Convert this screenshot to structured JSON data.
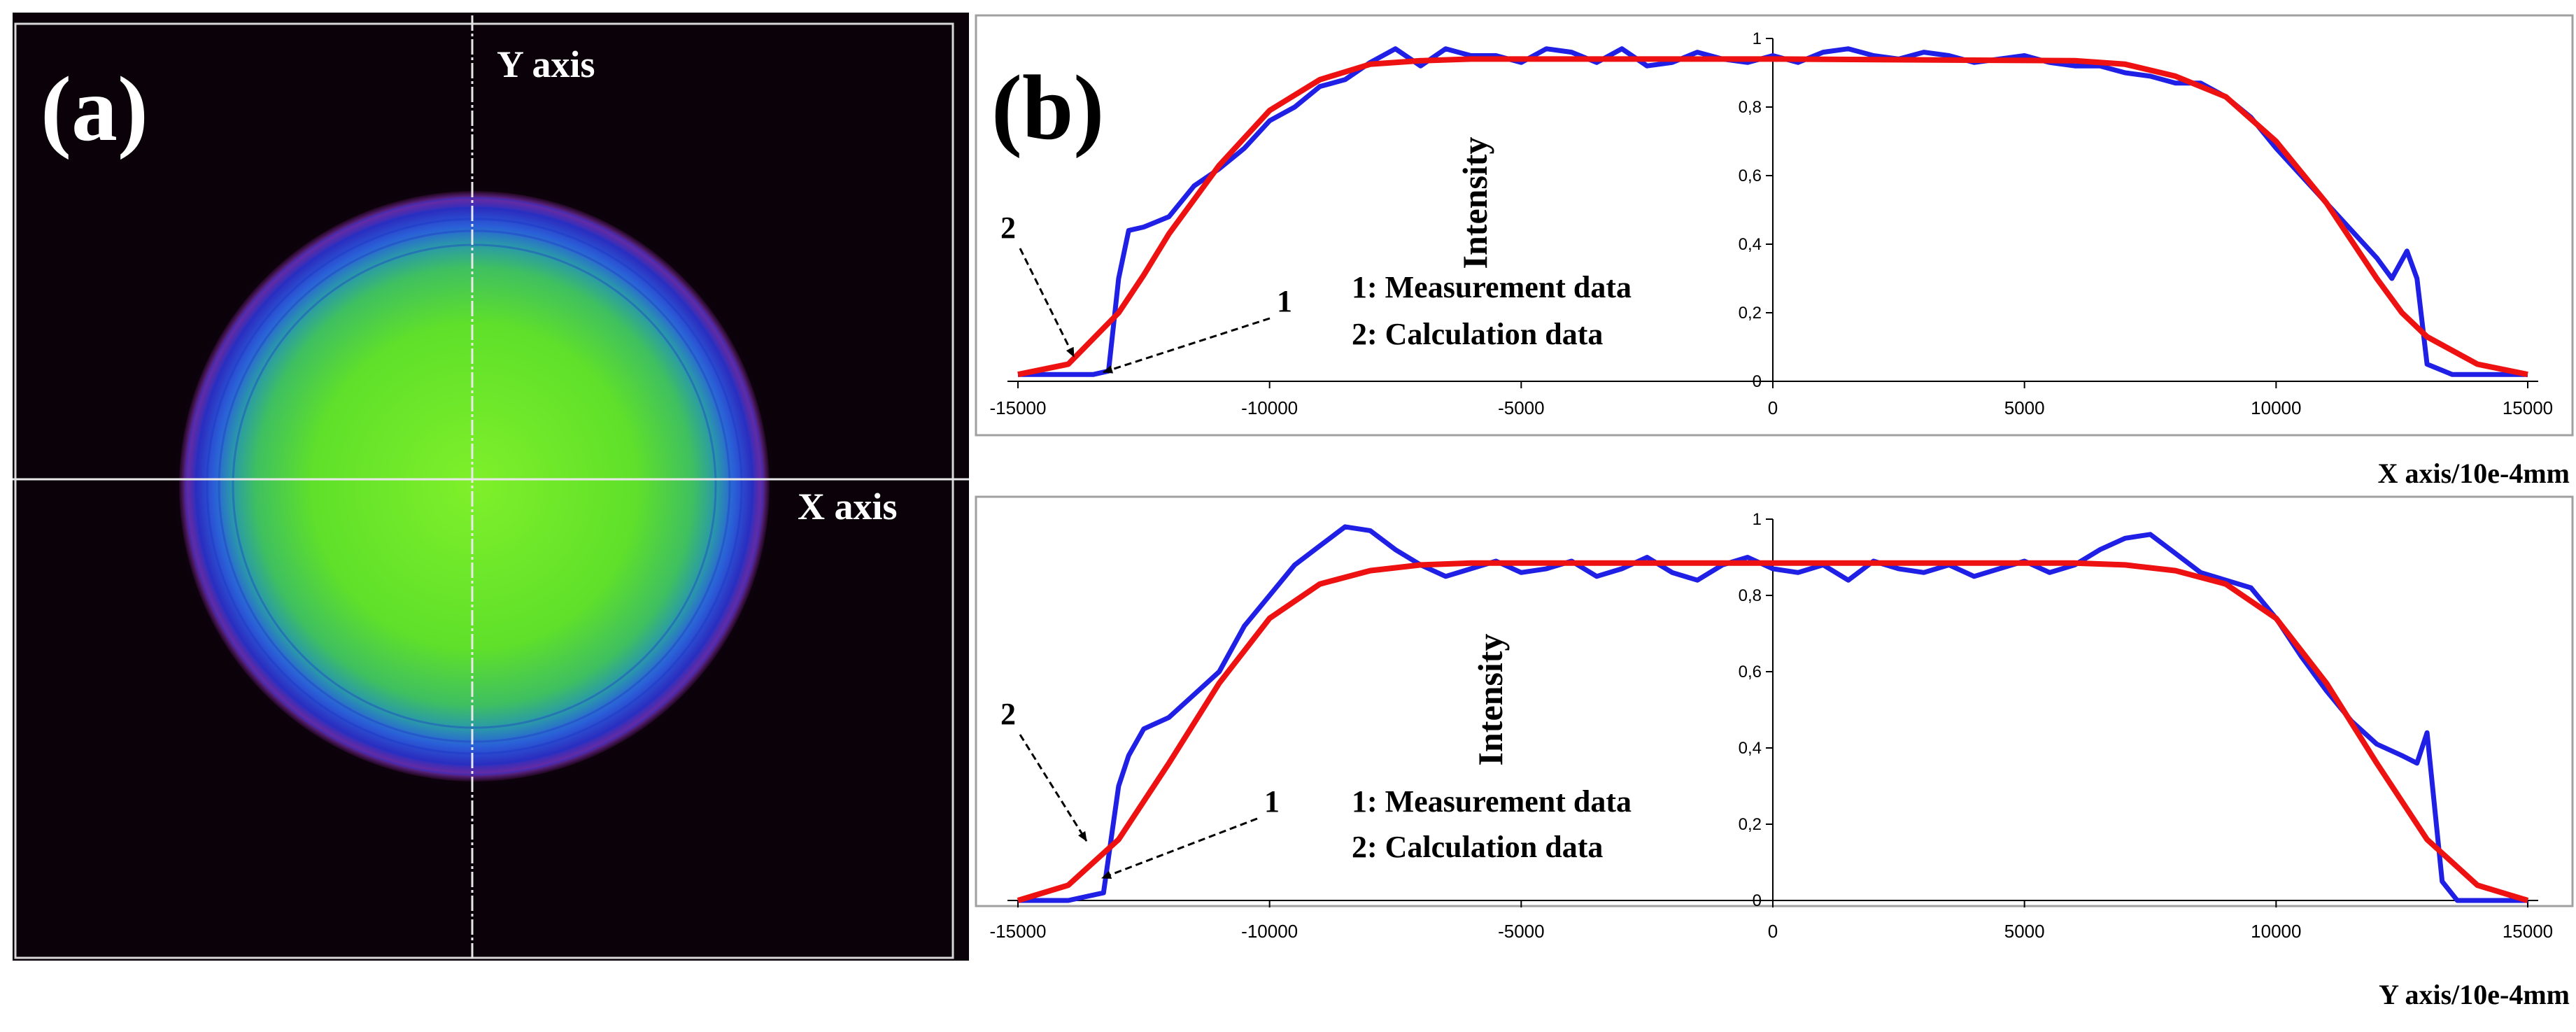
{
  "panel_a": {
    "label": "(a)",
    "y_axis_label": "Y axis",
    "x_axis_label": "X axis"
  },
  "panel_b": {
    "label": "(b)"
  },
  "colors": {
    "measurement": "#1f1fe6",
    "calculation": "#ee1111",
    "axis": "#000000"
  },
  "chart_data": [
    {
      "type": "line",
      "title": "",
      "xlabel": "X axis/10e-4mm",
      "ylabel": "Intensity",
      "xlim": [
        -15000,
        15000
      ],
      "ylim": [
        0,
        1
      ],
      "xticks": [
        -15000,
        -10000,
        -5000,
        0,
        5000,
        10000,
        15000
      ],
      "yticks": [
        0,
        0.2,
        0.4,
        0.6,
        0.8,
        1
      ],
      "ytick_labels": [
        "0",
        "0,2",
        "0,4",
        "0,6",
        "0,8",
        "1"
      ],
      "legend": [
        "1:  Measurement  data",
        "2:  Calculation data"
      ],
      "annotations": {
        "arrow1_label": "1",
        "arrow2_label": "2"
      },
      "series": [
        {
          "name": "Measurement data",
          "x": [
            -15000,
            -14000,
            -13500,
            -13200,
            -13000,
            -12800,
            -12500,
            -12000,
            -11500,
            -11000,
            -10500,
            -10000,
            -9500,
            -9000,
            -8500,
            -8000,
            -7500,
            -7000,
            -6500,
            -6000,
            -5500,
            -5000,
            -4500,
            -4000,
            -3500,
            -3000,
            -2500,
            -2000,
            -1500,
            -1000,
            -500,
            0,
            500,
            1000,
            1500,
            2000,
            2500,
            3000,
            3500,
            4000,
            4500,
            5000,
            5500,
            6000,
            6500,
            7000,
            7500,
            8000,
            8500,
            9000,
            9500,
            10000,
            10500,
            11000,
            11500,
            12000,
            12300,
            12600,
            12800,
            13000,
            13500,
            14000,
            15000
          ],
          "values": [
            0.02,
            0.02,
            0.02,
            0.03,
            0.3,
            0.44,
            0.45,
            0.48,
            0.57,
            0.62,
            0.68,
            0.76,
            0.8,
            0.86,
            0.88,
            0.93,
            0.97,
            0.92,
            0.97,
            0.95,
            0.95,
            0.93,
            0.97,
            0.96,
            0.93,
            0.97,
            0.92,
            0.93,
            0.96,
            0.94,
            0.93,
            0.95,
            0.93,
            0.96,
            0.97,
            0.95,
            0.94,
            0.96,
            0.95,
            0.93,
            0.94,
            0.95,
            0.93,
            0.92,
            0.92,
            0.9,
            0.89,
            0.87,
            0.87,
            0.83,
            0.77,
            0.68,
            0.6,
            0.52,
            0.44,
            0.36,
            0.3,
            0.38,
            0.3,
            0.05,
            0.02,
            0.02,
            0.02
          ]
        },
        {
          "name": "Calculation data",
          "x": [
            -15000,
            -14000,
            -13000,
            -12500,
            -12000,
            -11000,
            -10000,
            -9000,
            -8000,
            -7000,
            -6000,
            0,
            6000,
            7000,
            8000,
            9000,
            10000,
            11000,
            12000,
            12500,
            13000,
            14000,
            15000
          ],
          "values": [
            0.02,
            0.05,
            0.2,
            0.31,
            0.43,
            0.63,
            0.79,
            0.88,
            0.925,
            0.935,
            0.94,
            0.94,
            0.935,
            0.925,
            0.89,
            0.83,
            0.7,
            0.52,
            0.3,
            0.2,
            0.13,
            0.05,
            0.02
          ]
        }
      ]
    },
    {
      "type": "line",
      "title": "",
      "xlabel": "Y axis/10e-4mm",
      "ylabel": "Intensity",
      "xlim": [
        -15000,
        15000
      ],
      "ylim": [
        0,
        1
      ],
      "xticks": [
        -15000,
        -10000,
        -5000,
        0,
        5000,
        10000,
        15000
      ],
      "yticks": [
        0,
        0.2,
        0.4,
        0.6,
        0.8,
        1
      ],
      "ytick_labels": [
        "0",
        "0,2",
        "0,4",
        "0,6",
        "0,8",
        "1"
      ],
      "legend": [
        "1:  Measurement  data",
        "2:  Calculation data"
      ],
      "annotations": {
        "arrow1_label": "1",
        "arrow2_label": "2"
      },
      "series": [
        {
          "name": "Measurement data",
          "x": [
            -15000,
            -14000,
            -13300,
            -13000,
            -12800,
            -12500,
            -12000,
            -11500,
            -11000,
            -10500,
            -10000,
            -9500,
            -9000,
            -8500,
            -8000,
            -7500,
            -7000,
            -6500,
            -6000,
            -5500,
            -5000,
            -4500,
            -4000,
            -3500,
            -3000,
            -2500,
            -2000,
            -1500,
            -1000,
            -500,
            0,
            500,
            1000,
            1500,
            2000,
            2500,
            3000,
            3500,
            4000,
            4500,
            5000,
            5500,
            6000,
            6500,
            7000,
            7500,
            8000,
            8500,
            9000,
            9500,
            10000,
            10500,
            11000,
            11500,
            12000,
            12500,
            12800,
            13000,
            13300,
            13600,
            14000,
            15000
          ],
          "values": [
            0.0,
            0.0,
            0.02,
            0.3,
            0.38,
            0.45,
            0.48,
            0.54,
            0.6,
            0.72,
            0.8,
            0.88,
            0.93,
            0.98,
            0.97,
            0.92,
            0.88,
            0.85,
            0.87,
            0.89,
            0.86,
            0.87,
            0.89,
            0.85,
            0.87,
            0.9,
            0.86,
            0.84,
            0.88,
            0.9,
            0.87,
            0.86,
            0.88,
            0.84,
            0.89,
            0.87,
            0.86,
            0.88,
            0.85,
            0.87,
            0.89,
            0.86,
            0.88,
            0.92,
            0.95,
            0.96,
            0.91,
            0.86,
            0.84,
            0.82,
            0.74,
            0.64,
            0.55,
            0.47,
            0.41,
            0.38,
            0.36,
            0.44,
            0.05,
            0.0,
            0.0,
            0.0
          ]
        },
        {
          "name": "Calculation data",
          "x": [
            -15000,
            -14000,
            -13000,
            -12000,
            -11000,
            -10000,
            -9000,
            -8000,
            -7000,
            -6000,
            0,
            6000,
            7000,
            8000,
            9000,
            10000,
            11000,
            12000,
            13000,
            14000,
            15000
          ],
          "values": [
            0.0,
            0.04,
            0.16,
            0.36,
            0.57,
            0.74,
            0.83,
            0.865,
            0.88,
            0.885,
            0.885,
            0.885,
            0.88,
            0.865,
            0.83,
            0.74,
            0.57,
            0.36,
            0.16,
            0.04,
            0.0
          ]
        }
      ]
    }
  ]
}
